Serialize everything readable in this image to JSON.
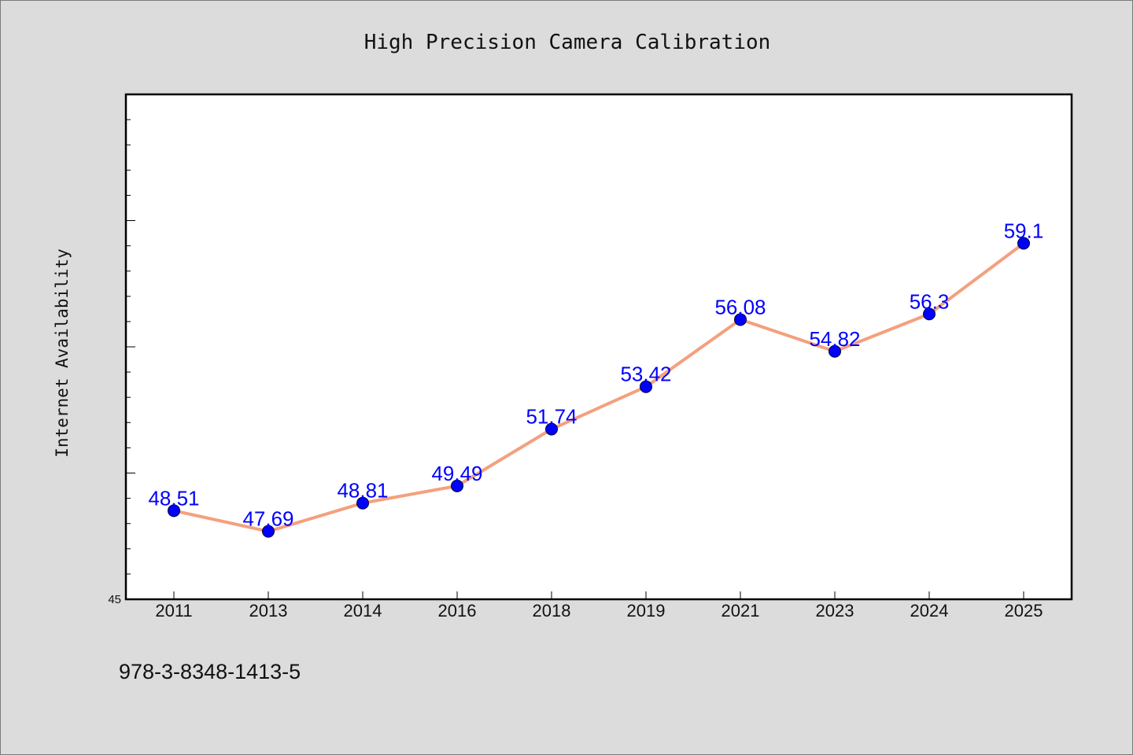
{
  "chart_data": {
    "type": "line",
    "title": "High Precision Camera Calibration",
    "ylabel": "Internet Availability",
    "xlabel": "",
    "categories": [
      "2011",
      "2013",
      "2014",
      "2016",
      "2018",
      "2019",
      "2021",
      "2023",
      "2024",
      "2025"
    ],
    "series": [
      {
        "values": [
          48.51,
          47.69,
          48.81,
          49.49,
          51.74,
          53.42,
          56.08,
          54.82,
          56.3,
          59.1
        ]
      }
    ],
    "data_labels": [
      "48.51",
      "47.69",
      "48.81",
      "49.49",
      "51.74",
      "53.42",
      "56.08",
      "54.82",
      "56.3",
      "59.1"
    ],
    "ylim": [
      45,
      65
    ],
    "y_tick_labels": [
      "45"
    ],
    "grid": false,
    "line_color": "#f4a07e",
    "marker_color": "#0000ff",
    "label_color": "#0000ff"
  },
  "footer": {
    "isbn": "978-3-8348-1413-5"
  }
}
